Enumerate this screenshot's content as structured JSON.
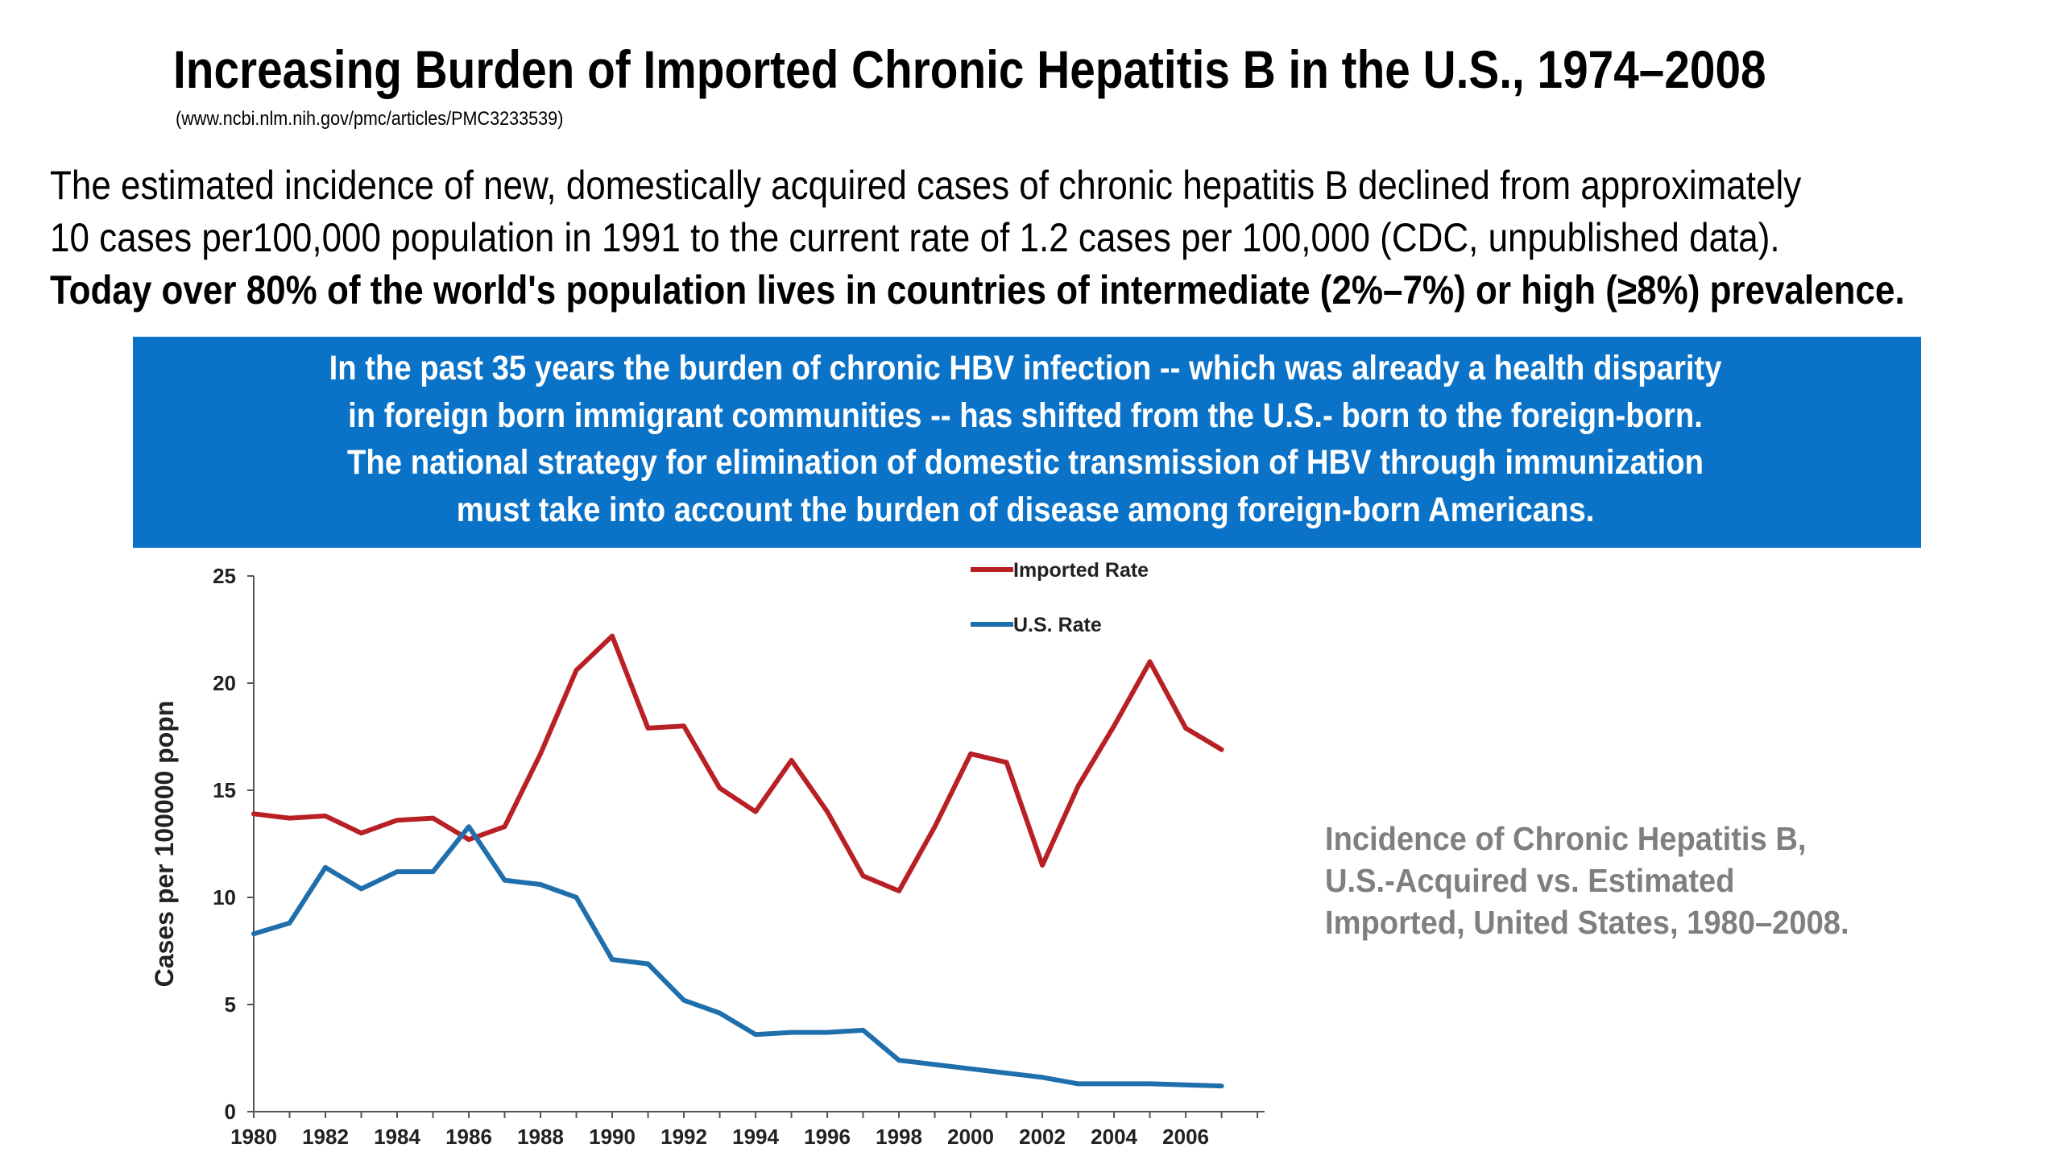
{
  "header": {
    "title": "Increasing Burden of Imported Chronic Hepatitis B in the U.S., 1974–2008",
    "source": "(www.ncbi.nlm.nih.gov/pmc/articles/PMC3233539)"
  },
  "intro": {
    "line1": "The estimated incidence of new, domestically acquired cases of chronic hepatitis B declined from approximately",
    "line2": "10 cases per100,000 population in 1991 to the current rate of 1.2 cases per 100,000 (CDC, unpublished data).",
    "line3": "Today over 80% of the world's population lives in countries of intermediate (2%–7%) or high (≥8%) prevalence."
  },
  "banner": {
    "line1": "In the past 35 years the burden of chronic HBV infection -- which was already a health disparity",
    "line2": "in foreign born immigrant communities -- has shifted from the U.S.- born to the foreign-born.",
    "line3": "The national strategy for elimination of domestic transmission of HBV through immunization",
    "line4": "must take into account the burden of disease among foreign-born Americans."
  },
  "caption": {
    "line1": "Incidence of Chronic Hepatitis B,",
    "line2": "U.S.-Acquired vs. Estimated",
    "line3": "Imported, United States, 1980–2008."
  },
  "chart_data": {
    "type": "line",
    "ylabel": "Cases per 100000 popn",
    "xlabel": "",
    "ylim": [
      0,
      25
    ],
    "xlim": [
      1980,
      2008
    ],
    "yticks": [
      0,
      5,
      10,
      15,
      20,
      25
    ],
    "xticks": [
      1980,
      1982,
      1984,
      1986,
      1988,
      1990,
      1992,
      1994,
      1996,
      1998,
      2000,
      2002,
      2004,
      2006
    ],
    "grid": false,
    "legend_position": "top-center",
    "series": [
      {
        "name": "Imported Rate",
        "color": "#b82025",
        "x": [
          1980,
          1981,
          1982,
          1983,
          1984,
          1985,
          1986,
          1987,
          1988,
          1989,
          1990,
          1991,
          1992,
          1993,
          1994,
          1995,
          1996,
          1997,
          1998,
          1999,
          2000,
          2001,
          2002,
          2003,
          2004,
          2005,
          2006,
          2007
        ],
        "values": [
          13.9,
          13.7,
          13.8,
          13.0,
          13.6,
          13.7,
          12.7,
          13.3,
          16.7,
          20.6,
          22.2,
          17.9,
          18.0,
          15.1,
          14.0,
          16.4,
          14.0,
          11.0,
          10.3,
          13.3,
          16.7,
          16.3,
          11.5,
          15.2,
          18.0,
          21.0,
          17.9,
          16.9
        ]
      },
      {
        "name": "U.S. Rate",
        "color": "#1f6fad",
        "x": [
          1980,
          1981,
          1982,
          1983,
          1984,
          1985,
          1986,
          1987,
          1988,
          1989,
          1990,
          1991,
          1992,
          1993,
          1994,
          1995,
          1996,
          1997,
          1998,
          1999,
          2000,
          2001,
          2002,
          2003,
          2004,
          2005,
          2006,
          2007
        ],
        "values": [
          8.3,
          8.8,
          11.4,
          10.4,
          11.2,
          11.2,
          13.3,
          10.8,
          10.6,
          10.0,
          7.1,
          6.9,
          5.2,
          4.6,
          3.6,
          3.7,
          3.7,
          3.8,
          2.4,
          2.2,
          2.0,
          1.8,
          1.6,
          1.3,
          1.3,
          1.3,
          1.25,
          1.2
        ]
      }
    ]
  }
}
